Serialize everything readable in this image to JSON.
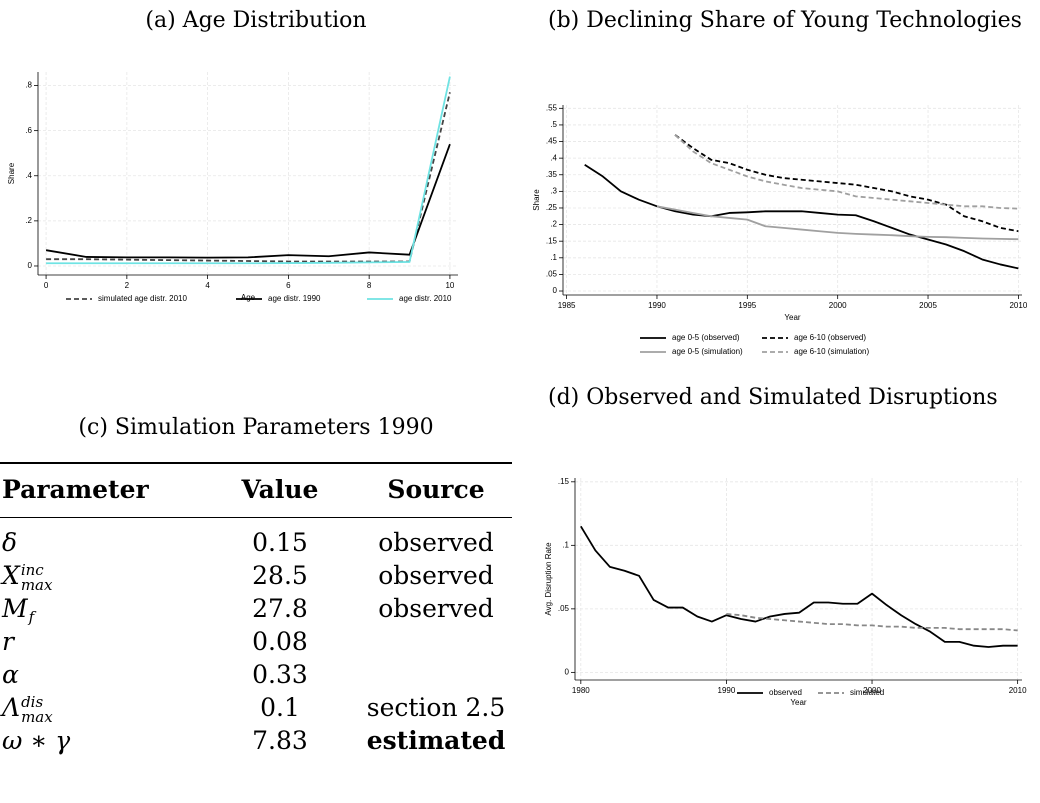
{
  "chart_data": [
    {
      "type": "line",
      "title": "(a) Age Distribution",
      "xlabel": "Age",
      "ylabel": "Share",
      "x": [
        0,
        1,
        2,
        3,
        4,
        5,
        6,
        7,
        8,
        9,
        10
      ],
      "xlim": [
        -0.2,
        10.2
      ],
      "xticks": [
        0,
        2,
        4,
        6,
        8,
        10
      ],
      "ylim": [
        -0.04,
        0.86
      ],
      "yticks": [
        0,
        {
          "value": 0.2,
          "label": ".2"
        },
        {
          "value": 0.4,
          "label": ".4"
        },
        {
          "value": 0.6,
          "label": ".6"
        },
        {
          "value": 0.8,
          "label": ".8"
        }
      ],
      "grid": true,
      "series": [
        {
          "name": "simulated age distr. 2010",
          "color": "#444444",
          "line_style": "dashed",
          "values": [
            0.03,
            0.03,
            0.028,
            0.026,
            0.024,
            0.022,
            0.02,
            0.02,
            0.02,
            0.02,
            0.77
          ]
        },
        {
          "name": "age distr. 1990",
          "color": "#000000",
          "line_style": "solid",
          "values": [
            0.07,
            0.04,
            0.038,
            0.038,
            0.037,
            0.038,
            0.048,
            0.043,
            0.06,
            0.05,
            0.54
          ]
        },
        {
          "name": "age distr. 2010",
          "color": "#6fe3e3",
          "line_style": "solid",
          "values": [
            0.012,
            0.012,
            0.012,
            0.012,
            0.012,
            0.012,
            0.013,
            0.014,
            0.016,
            0.018,
            0.84
          ]
        }
      ]
    },
    {
      "type": "line",
      "title": "(b) Declining Share of Young Technologies",
      "xlabel": "Year",
      "ylabel": "Share",
      "xlim": [
        1984.8,
        2010.2
      ],
      "xticks": [
        1985,
        1990,
        1995,
        2000,
        2005,
        2010
      ],
      "ylim": [
        -0.012,
        0.56
      ],
      "yticks": [
        0,
        {
          "value": 0.05,
          "label": ".05"
        },
        {
          "value": 0.1,
          "label": ".1"
        },
        {
          "value": 0.15,
          "label": ".15"
        },
        {
          "value": 0.2,
          "label": ".2"
        },
        {
          "value": 0.25,
          "label": ".25"
        },
        {
          "value": 0.3,
          "label": ".3"
        },
        {
          "value": 0.35,
          "label": ".35"
        },
        {
          "value": 0.4,
          "label": ".4"
        },
        {
          "value": 0.45,
          "label": ".45"
        },
        {
          "value": 0.5,
          "label": ".5"
        },
        {
          "value": 0.55,
          "label": ".55"
        }
      ],
      "grid": true,
      "series": [
        {
          "name": "age 0-5 (observed)",
          "color": "#000000",
          "line_style": "solid",
          "x": [
            1986,
            1987,
            1988,
            1989,
            1990,
            1991,
            1992,
            1993,
            1994,
            1995,
            1996,
            1997,
            1998,
            1999,
            2000,
            2001,
            2002,
            2003,
            2004,
            2005,
            2006,
            2007,
            2008,
            2009,
            2010
          ],
          "values": [
            0.38,
            0.345,
            0.3,
            0.275,
            0.255,
            0.24,
            0.23,
            0.225,
            0.235,
            0.237,
            0.24,
            0.24,
            0.24,
            0.235,
            0.23,
            0.228,
            0.21,
            0.19,
            0.17,
            0.155,
            0.14,
            0.12,
            0.095,
            0.08,
            0.068
          ]
        },
        {
          "name": "age 6-10 (observed)",
          "color": "#000000",
          "line_style": "dashed",
          "x": [
            1991,
            1992,
            1993,
            1994,
            1995,
            1996,
            1997,
            1998,
            1999,
            2000,
            2001,
            2002,
            2003,
            2004,
            2005,
            2006,
            2007,
            2008,
            2009,
            2010
          ],
          "values": [
            0.47,
            0.43,
            0.395,
            0.385,
            0.365,
            0.35,
            0.34,
            0.335,
            0.33,
            0.325,
            0.32,
            0.31,
            0.3,
            0.285,
            0.275,
            0.26,
            0.225,
            0.21,
            0.19,
            0.18
          ]
        },
        {
          "name": "age 0-5 (simulation)",
          "color": "#a0a0a0",
          "line_style": "solid",
          "x": [
            1990,
            1991,
            1992,
            1993,
            1994,
            1995,
            1996,
            1997,
            1998,
            1999,
            2000,
            2001,
            2002,
            2003,
            2004,
            2005,
            2006,
            2007,
            2008,
            2009,
            2010
          ],
          "values": [
            0.255,
            0.245,
            0.235,
            0.225,
            0.22,
            0.215,
            0.195,
            0.19,
            0.185,
            0.18,
            0.175,
            0.172,
            0.17,
            0.168,
            0.165,
            0.163,
            0.162,
            0.16,
            0.158,
            0.157,
            0.156
          ]
        },
        {
          "name": "age 6-10 (simulation)",
          "color": "#a0a0a0",
          "line_style": "dashed",
          "x": [
            1991,
            1992,
            1993,
            1994,
            1995,
            1996,
            1997,
            1998,
            1999,
            2000,
            2001,
            2002,
            2003,
            2004,
            2005,
            2006,
            2007,
            2008,
            2009,
            2010
          ],
          "values": [
            0.47,
            0.42,
            0.385,
            0.365,
            0.345,
            0.33,
            0.32,
            0.31,
            0.305,
            0.3,
            0.285,
            0.28,
            0.275,
            0.27,
            0.265,
            0.26,
            0.255,
            0.255,
            0.25,
            0.248
          ]
        }
      ]
    },
    {
      "type": "line",
      "title": "(d) Observed and Simulated Disruptions",
      "xlabel": "Year",
      "ylabel": "Avg. Disruption Rate",
      "xlim": [
        1979.6,
        2010.3
      ],
      "xticks": [
        1980,
        1990,
        2000,
        2010
      ],
      "ylim": [
        -0.006,
        0.153
      ],
      "yticks": [
        0,
        {
          "value": 0.05,
          "label": ".05"
        },
        {
          "value": 0.1,
          "label": ".1"
        },
        {
          "value": 0.15,
          "label": ".15"
        }
      ],
      "grid": true,
      "series": [
        {
          "name": "observed",
          "color": "#000000",
          "line_style": "solid",
          "x": [
            1980,
            1981,
            1982,
            1983,
            1984,
            1985,
            1986,
            1987,
            1988,
            1989,
            1990,
            1991,
            1992,
            1993,
            1994,
            1995,
            1996,
            1997,
            1998,
            1999,
            2000,
            2001,
            2002,
            2003,
            2004,
            2005,
            2006,
            2007,
            2008,
            2009,
            2010
          ],
          "values": [
            0.115,
            0.096,
            0.083,
            0.08,
            0.076,
            0.057,
            0.051,
            0.051,
            0.044,
            0.04,
            0.045,
            0.042,
            0.04,
            0.044,
            0.046,
            0.047,
            0.055,
            0.055,
            0.054,
            0.054,
            0.062,
            0.053,
            0.045,
            0.038,
            0.032,
            0.024,
            0.024,
            0.021,
            0.02,
            0.021,
            0.021
          ]
        },
        {
          "name": "simulated",
          "color": "#888888",
          "line_style": "dashed",
          "x": [
            1990,
            1991,
            1992,
            1993,
            1994,
            1995,
            1996,
            1997,
            1998,
            1999,
            2000,
            2001,
            2002,
            2003,
            2004,
            2005,
            2006,
            2007,
            2008,
            2009,
            2010
          ],
          "values": [
            0.046,
            0.045,
            0.043,
            0.042,
            0.041,
            0.04,
            0.039,
            0.038,
            0.038,
            0.037,
            0.037,
            0.036,
            0.036,
            0.035,
            0.035,
            0.035,
            0.034,
            0.034,
            0.034,
            0.034,
            0.033
          ]
        }
      ]
    }
  ],
  "table": {
    "caption": "(c) Simulation Parameters 1990",
    "header": [
      "Parameter",
      "Value",
      "Source"
    ],
    "rows": [
      {
        "param": {
          "base": "δ"
        },
        "value": 0.15,
        "source": "observed"
      },
      {
        "param": {
          "base": "X",
          "sup": "inc",
          "sub": "max"
        },
        "value": 28.5,
        "source": "observed"
      },
      {
        "param": {
          "base": "M",
          "sub": "f"
        },
        "value": 27.8,
        "source": "observed"
      },
      {
        "param": {
          "base": "r"
        },
        "value": 0.08
      },
      {
        "param": {
          "base": "α"
        },
        "value": 0.33
      },
      {
        "param": {
          "base": "Λ",
          "sup": "dis",
          "sub": "max"
        },
        "value": 0.1,
        "source": "section 2.5"
      },
      {
        "param": {
          "base": "ω ∗ γ"
        },
        "value": 7.83,
        "source": "estimated"
      }
    ]
  }
}
